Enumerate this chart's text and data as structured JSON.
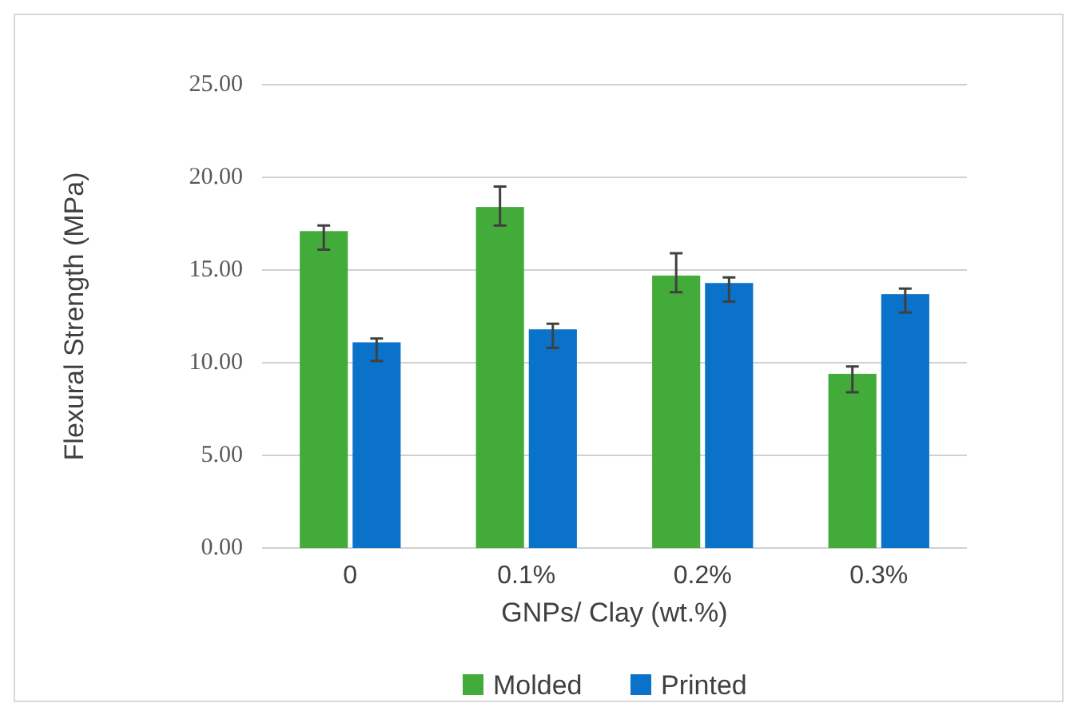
{
  "chart_data": {
    "type": "bar",
    "categories": [
      "0",
      "0.1%",
      "0.2%",
      "0.3%"
    ],
    "series": [
      {
        "name": "Molded",
        "color": "#43ab3a",
        "values": [
          17.1,
          18.4,
          14.7,
          9.4
        ],
        "errors": [
          [
            16.1,
            17.4
          ],
          [
            17.4,
            19.5
          ],
          [
            13.8,
            15.9
          ],
          [
            8.4,
            9.8
          ]
        ]
      },
      {
        "name": "Printed",
        "color": "#0a72c9",
        "values": [
          11.1,
          11.8,
          14.3,
          13.7
        ],
        "errors": [
          [
            10.1,
            11.3
          ],
          [
            10.8,
            12.1
          ],
          [
            13.3,
            14.6
          ],
          [
            12.7,
            14.0
          ]
        ]
      }
    ],
    "xlabel": "GNPs/ Clay (wt.%)",
    "ylabel": "Flexural Strength (MPa)",
    "ylim": [
      0,
      25
    ],
    "yticks": [
      {
        "value": 0,
        "label": "0.00"
      },
      {
        "value": 5,
        "label": "5.00"
      },
      {
        "value": 10,
        "label": "10.00"
      },
      {
        "value": 15,
        "label": "15.00"
      },
      {
        "value": 20,
        "label": "20.00"
      },
      {
        "value": 25,
        "label": "25.00"
      }
    ],
    "grid": "y",
    "legend": "bottom"
  }
}
